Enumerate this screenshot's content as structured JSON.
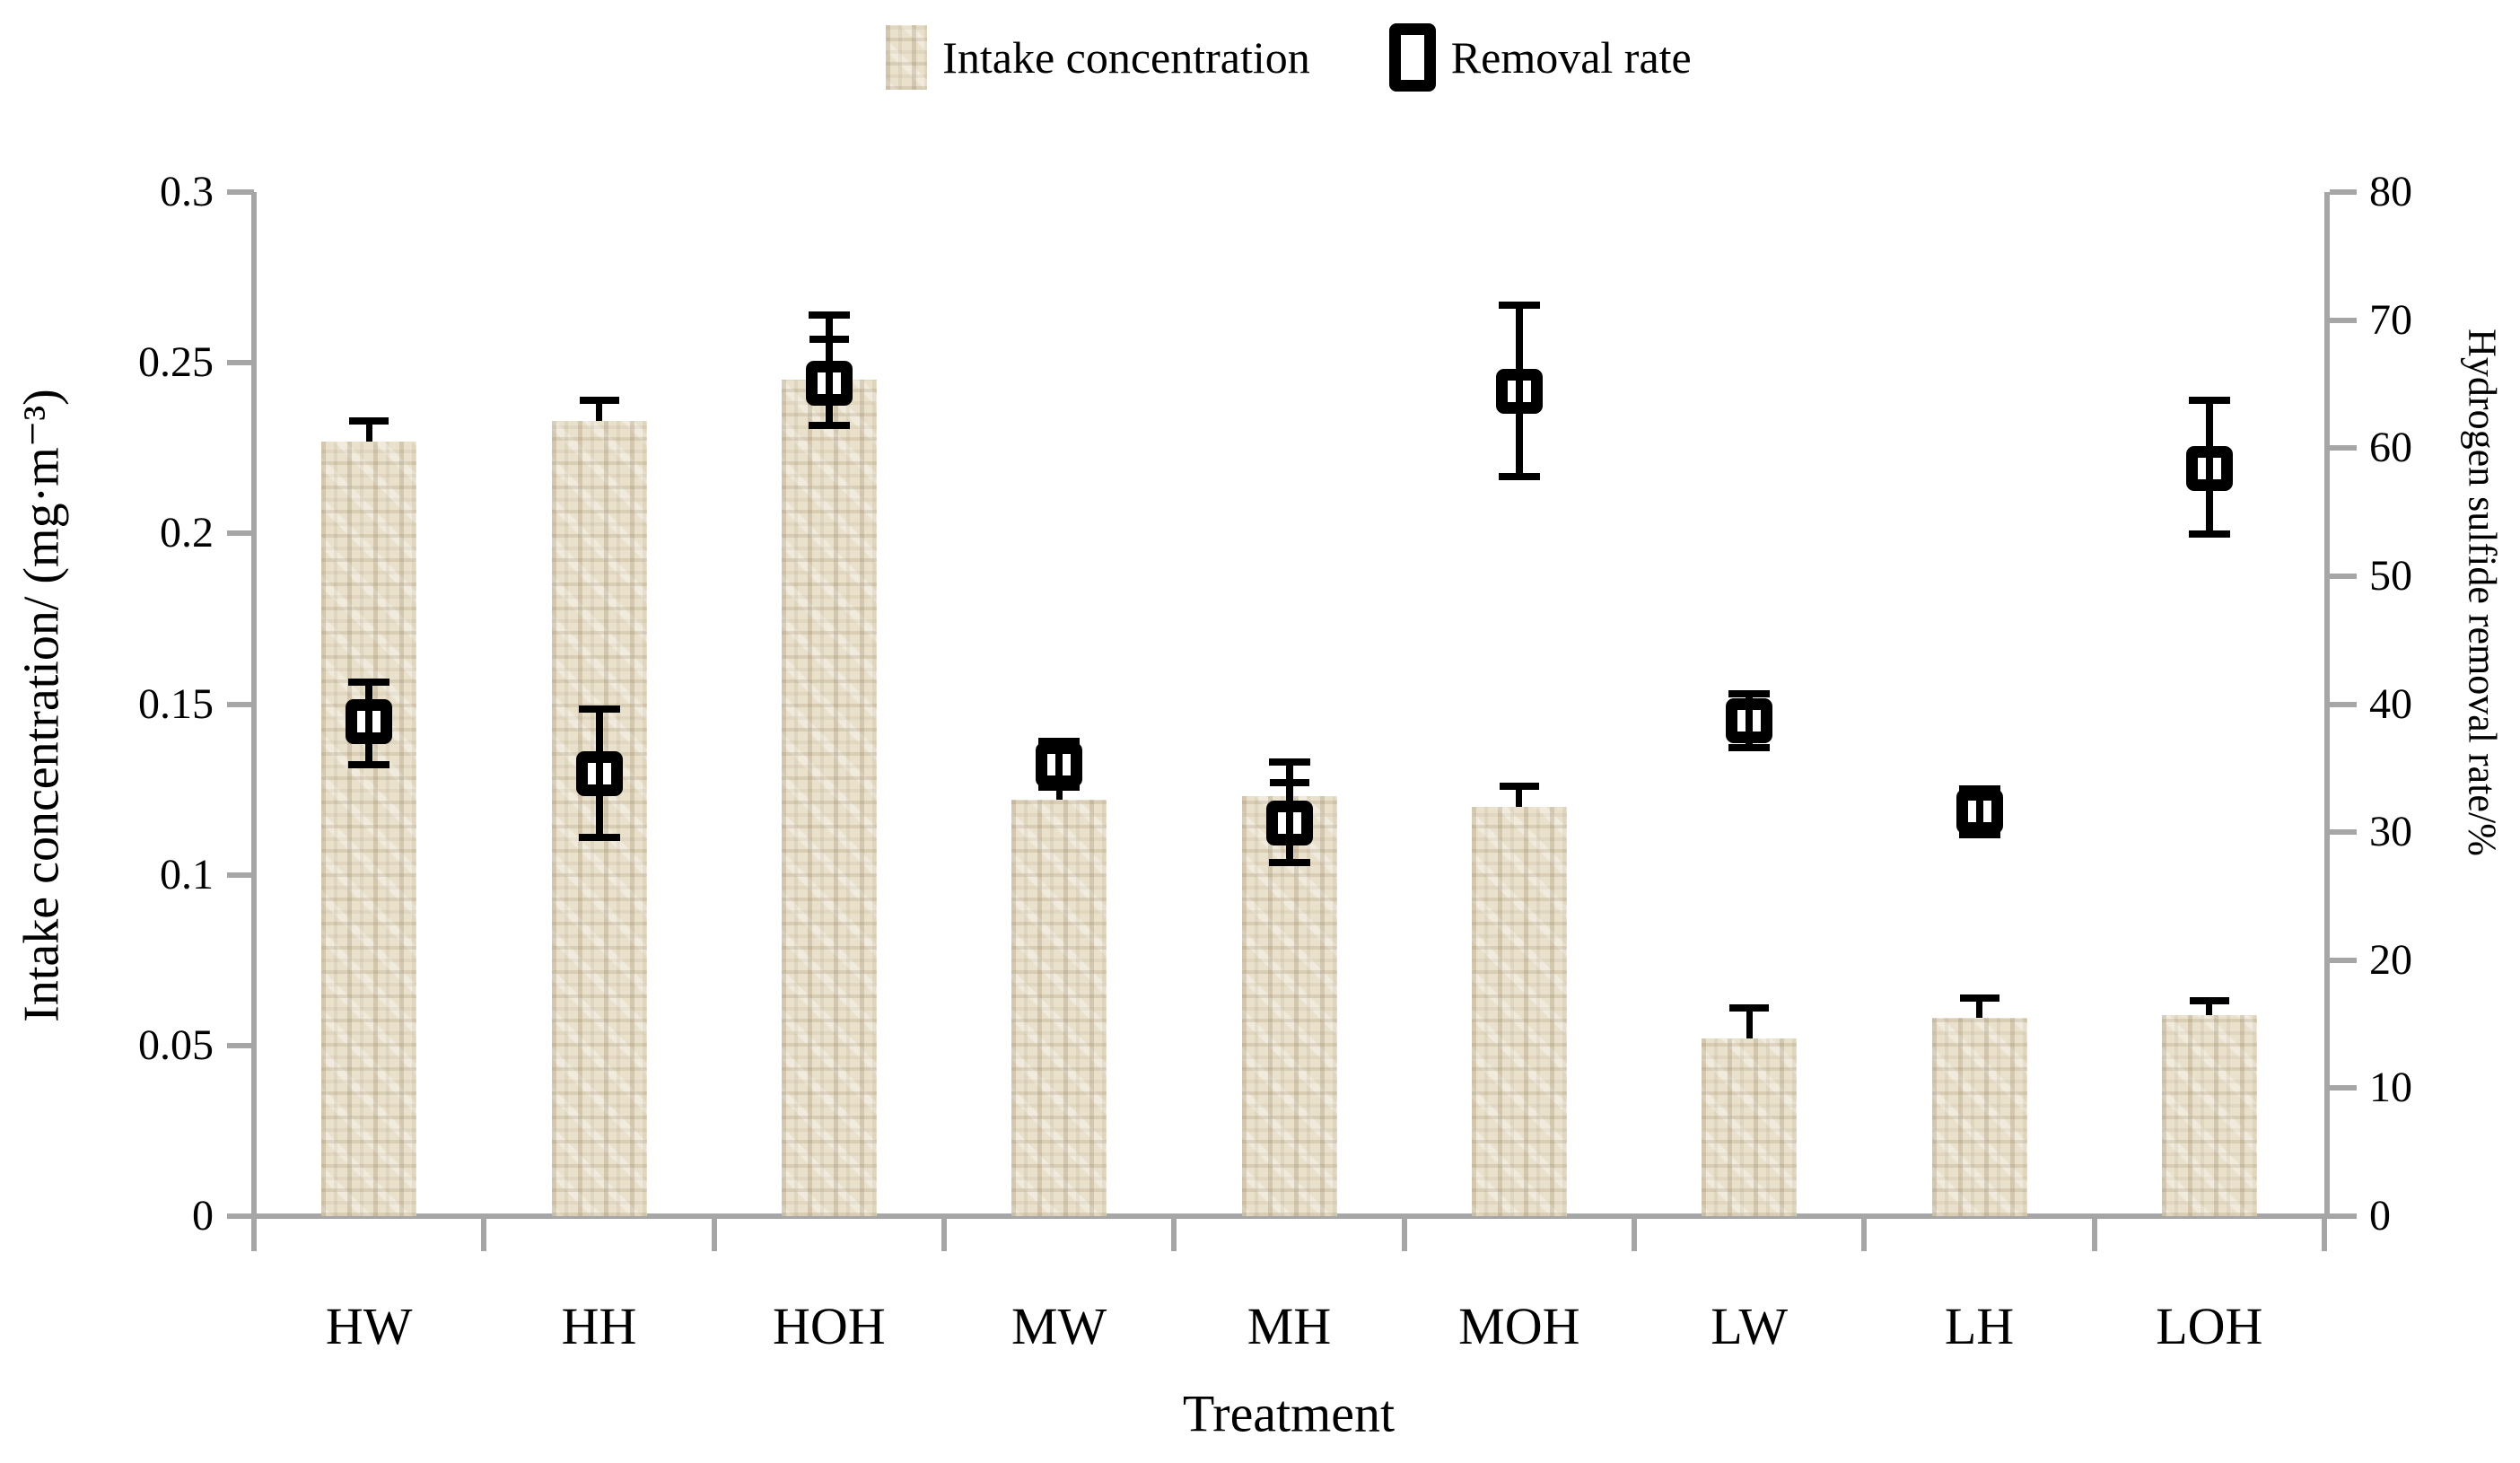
{
  "legend": {
    "items": [
      {
        "label": "Intake concentration",
        "swatch": "textured-bar-swatch"
      },
      {
        "label": "Removal rate",
        "swatch": "open-square-marker-swatch"
      }
    ],
    "position": "top"
  },
  "axes": {
    "left": {
      "title": "Intake concentration/ (mg·m⁻³)",
      "tick_labels": [
        "0",
        "0.05",
        "0.1",
        "0.15",
        "0.2",
        "0.25",
        "0.3"
      ],
      "range": [
        0,
        0.3
      ]
    },
    "right": {
      "title": "Hydrogen sulfide removal rate/%",
      "tick_labels": [
        "0",
        "10",
        "20",
        "30",
        "40",
        "50",
        "60",
        "70",
        "80"
      ],
      "range": [
        0,
        80
      ]
    },
    "x": {
      "title": "Treatment"
    }
  },
  "chart_data": {
    "type": "bar",
    "categories": [
      "HW",
      "HH",
      "HOH",
      "MW",
      "MH",
      "MOH",
      "LW",
      "LH",
      "LOH"
    ],
    "series": [
      {
        "name": "Intake concentration",
        "type": "bar",
        "axis": "left",
        "values": [
          0.227,
          0.233,
          0.245,
          0.122,
          0.123,
          0.12,
          0.052,
          0.058,
          0.059
        ],
        "err_up": [
          0.006,
          0.006,
          0.012,
          0.004,
          0.004,
          0.006,
          0.009,
          0.006,
          0.004
        ]
      },
      {
        "name": "Removal rate",
        "type": "scatter",
        "axis": "right",
        "values": [
          38.6,
          34.6,
          65.1,
          35.3,
          30.7,
          64.4,
          38.7,
          31.6,
          58.4
        ],
        "err_up": [
          3.1,
          5.0,
          5.3,
          1.8,
          4.8,
          6.8,
          2.1,
          1.8,
          5.3
        ],
        "err_down": [
          3.3,
          5.0,
          3.3,
          1.8,
          3.1,
          6.6,
          2.1,
          1.8,
          5.1
        ]
      }
    ],
    "left_ylim": [
      0,
      0.3
    ],
    "right_ylim": [
      0,
      80
    ],
    "xlabel": "Treatment",
    "ylabel_left": "Intake concentration/ (mg·m⁻³)",
    "ylabel_right": "Hydrogen sulfide removal rate/%",
    "grid": false,
    "legend_position": "top",
    "colors": {
      "bar_fill": "#eae1cc",
      "bar_hatch": "#978463",
      "marker": "#000000",
      "marker_fill": "#ffffff",
      "axis_line": "#a6a6a6",
      "text": "#000000"
    }
  }
}
